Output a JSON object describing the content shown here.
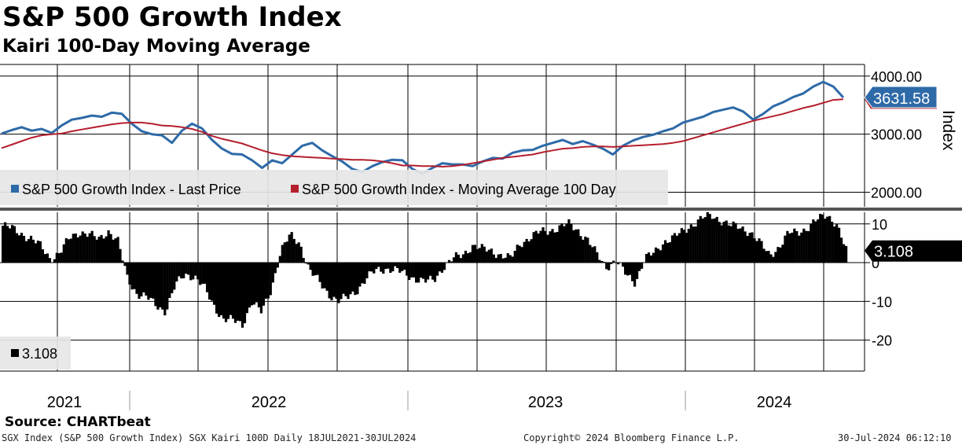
{
  "chart_data": [
    {
      "type": "line",
      "title": "S&P 500 Growth Index",
      "subtitle": "Kairi 100-Day Moving Average",
      "ylabel": "Index",
      "ylim": [
        1750,
        4200
      ],
      "yticks": [
        2000,
        3000,
        4000
      ],
      "ytick_labels": [
        "2000.00",
        "3000.00",
        "4000.00"
      ],
      "last_value_label": "3631.58",
      "series": [
        {
          "name": "S&P 500 Growth Index - Last Price",
          "color": "#2e6aa8",
          "values": [
            3010,
            3070,
            3120,
            3060,
            3090,
            3020,
            3150,
            3250,
            3280,
            3320,
            3300,
            3370,
            3350,
            3180,
            3050,
            3000,
            2980,
            2850,
            3060,
            3180,
            3100,
            2900,
            2750,
            2660,
            2650,
            2550,
            2420,
            2550,
            2500,
            2650,
            2800,
            2850,
            2720,
            2620,
            2530,
            2400,
            2350,
            2450,
            2520,
            2560,
            2550,
            2400,
            2320,
            2420,
            2500,
            2480,
            2480,
            2450,
            2530,
            2590,
            2580,
            2680,
            2720,
            2730,
            2800,
            2850,
            2900,
            2830,
            2880,
            2820,
            2750,
            2650,
            2800,
            2890,
            2950,
            2990,
            3050,
            3100,
            3200,
            3250,
            3300,
            3380,
            3420,
            3460,
            3390,
            3250,
            3350,
            3480,
            3550,
            3640,
            3700,
            3820,
            3900,
            3820,
            3631.58
          ]
        },
        {
          "name": "S&P 500 Growth Index - Moving Average 100 Day",
          "color": "#b41f2e",
          "values": [
            2760,
            2820,
            2880,
            2940,
            2980,
            3000,
            3010,
            3050,
            3080,
            3110,
            3140,
            3170,
            3190,
            3200,
            3200,
            3180,
            3150,
            3140,
            3120,
            3090,
            3040,
            2970,
            2920,
            2880,
            2840,
            2780,
            2720,
            2670,
            2640,
            2620,
            2610,
            2600,
            2590,
            2580,
            2570,
            2560,
            2560,
            2550,
            2530,
            2500,
            2460,
            2460,
            2450,
            2450,
            2440,
            2450,
            2470,
            2500,
            2530,
            2560,
            2590,
            2610,
            2630,
            2650,
            2690,
            2720,
            2750,
            2760,
            2780,
            2790,
            2790,
            2780,
            2790,
            2800,
            2810,
            2820,
            2830,
            2850,
            2880,
            2930,
            2980,
            3030,
            3080,
            3130,
            3180,
            3230,
            3270,
            3310,
            3350,
            3400,
            3450,
            3490,
            3540,
            3590,
            3600
          ]
        }
      ],
      "legend_placement": "bottom-left"
    },
    {
      "type": "bar",
      "title": "SGX Kairi 100D",
      "ylim": [
        -28,
        13
      ],
      "yticks": [
        -20,
        -10,
        0,
        10
      ],
      "ytick_labels": [
        "-20",
        "-10",
        "0",
        "10"
      ],
      "last_value_label": "3.108",
      "series": [
        {
          "name": "3.108",
          "color": "#000000",
          "values": [
            9.5,
            8.8,
            7.5,
            6.0,
            4.2,
            1.0,
            2.5,
            6.5,
            8.0,
            7.2,
            6.0,
            8.3,
            5.5,
            -4.0,
            -8.0,
            -9.0,
            -11.0,
            -12.5,
            -6.0,
            -3.0,
            -3.5,
            -6.5,
            -11.0,
            -14.5,
            -15.0,
            -16.0,
            -10.0,
            -13.0,
            -7.0,
            3.0,
            7.0,
            5.0,
            -2.0,
            -5.0,
            -8.0,
            -10.0,
            -9.0,
            -7.0,
            -4.0,
            -2.0,
            -1.5,
            -2.0,
            -3.0,
            -4.0,
            -5.0,
            -4.5,
            -1.0,
            1.0,
            2.0,
            4.5,
            3.5,
            3.0,
            2.0,
            1.0,
            5.0,
            6.5,
            7.8,
            8.3,
            9.0,
            10.0,
            8.5,
            6.0,
            2.0,
            -1.0,
            0.5,
            -3.0,
            -5.0,
            1.0,
            2.5,
            5.5,
            6.5,
            8.0,
            10.0,
            11.5,
            12.0,
            11.0,
            9.5,
            9.0,
            8.0,
            5.0,
            2.0,
            4.0,
            7.5,
            8.0,
            9.0,
            11.0,
            12.5,
            10.0,
            3.108
          ]
        }
      ],
      "legend_placement": "bottom-left"
    }
  ],
  "x_axis": {
    "years": [
      "2021",
      "2022",
      "2023",
      "2024"
    ]
  },
  "source": "Source: CHARTbeat",
  "footer": {
    "left": "SGX Index (S&P 500 Growth Index) SGX Kairi 100D  Daily 18JUL2021-30JUL2024",
    "center": "Copyright© 2024 Bloomberg Finance L.P.",
    "right": "30-Jul-2024 06:12:10"
  }
}
